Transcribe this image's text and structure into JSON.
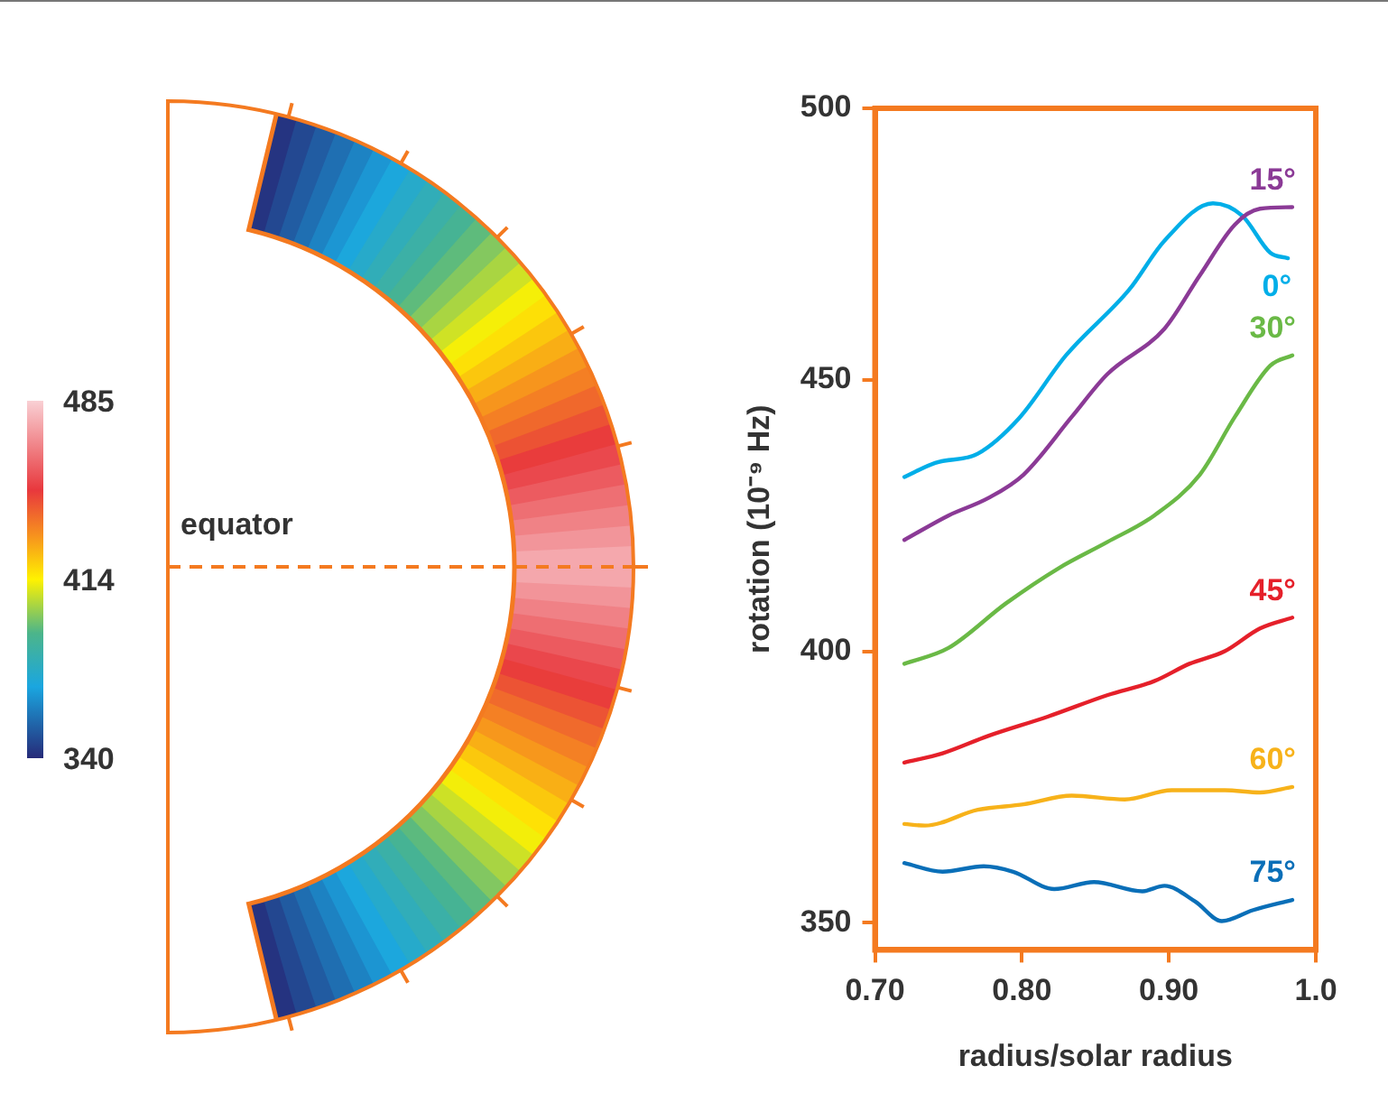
{
  "chart_data": [
    {
      "type": "other",
      "annotations": [
        "485",
        "414",
        "340",
        "equator"
      ]
    },
    {
      "type": "line",
      "xlabel": "radius/solar radius",
      "ylabel": "rotation (10⁻⁹ Hz)",
      "xlim": [
        0.7,
        1.0
      ],
      "ylim": [
        345,
        500
      ],
      "xticks": [
        {
          "value": 0.7,
          "label": "0.70"
        },
        {
          "value": 0.8,
          "label": "0.80"
        },
        {
          "value": 0.9,
          "label": "0.90"
        },
        {
          "value": 1.0,
          "label": "1.0"
        }
      ],
      "yticks": [
        350,
        400,
        450,
        500
      ],
      "grid": false,
      "legend": false,
      "marker": "none",
      "line_style": "solid",
      "series": [
        {
          "name": "15°",
          "color": "#8b3a96",
          "x": [
            0.72,
            0.75,
            0.777,
            0.801,
            0.834,
            0.858,
            0.897,
            0.921,
            0.945,
            0.962,
            0.984
          ],
          "values": [
            420.5,
            425,
            428.2,
            432.5,
            443.2,
            451,
            459.4,
            469.2,
            478.6,
            481.5,
            481.8
          ]
        },
        {
          "name": "0°",
          "color": "#00aee8",
          "x": [
            0.72,
            0.741,
            0.77,
            0.798,
            0.83,
            0.873,
            0.897,
            0.93,
            0.95,
            0.969,
            0.981
          ],
          "values": [
            432.1,
            434.7,
            436.4,
            442.9,
            454.5,
            466.6,
            475.6,
            482.5,
            480.2,
            473.4,
            472.4
          ]
        },
        {
          "name": "30°",
          "color": "#6ab946",
          "x": [
            0.72,
            0.75,
            0.789,
            0.825,
            0.858,
            0.89,
            0.921,
            0.945,
            0.969,
            0.984
          ],
          "values": [
            397.7,
            400.6,
            408.8,
            415.3,
            420.1,
            425,
            432.5,
            443.2,
            452.6,
            454.5
          ]
        },
        {
          "name": "45°",
          "color": "#e5202a",
          "x": [
            0.72,
            0.746,
            0.777,
            0.818,
            0.858,
            0.89,
            0.914,
            0.938,
            0.962,
            0.984
          ],
          "values": [
            379.5,
            381.2,
            384.4,
            388,
            391.9,
            394.5,
            397.7,
            400,
            404.2,
            406.2
          ]
        },
        {
          "name": "60°",
          "color": "#f7b21a",
          "x": [
            0.72,
            0.734,
            0.77,
            0.801,
            0.834,
            0.87,
            0.902,
            0.938,
            0.962,
            0.984
          ],
          "values": [
            368.2,
            367.9,
            370.8,
            371.8,
            373.4,
            372.7,
            374.4,
            374.4,
            374,
            375
          ]
        },
        {
          "name": "75°",
          "color": "#0a6fb8",
          "x": [
            0.72,
            0.746,
            0.774,
            0.794,
            0.822,
            0.849,
            0.882,
            0.897,
            0.918,
            0.936,
            0.957,
            0.984
          ],
          "values": [
            361,
            359.4,
            360.4,
            359.4,
            356.2,
            357.5,
            355.8,
            356.8,
            353.9,
            350.3,
            352.3,
            354.2
          ]
        }
      ]
    }
  ]
}
